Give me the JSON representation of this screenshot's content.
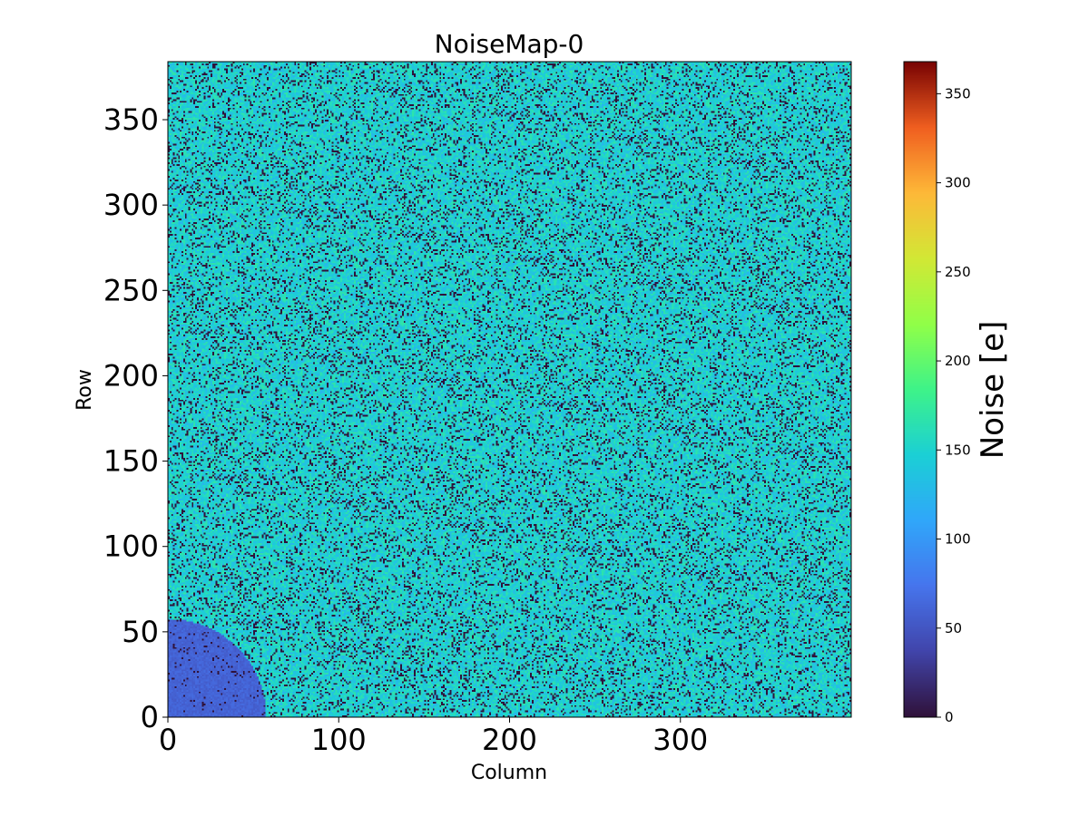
{
  "chart_data": {
    "type": "heatmap",
    "title": "NoiseMap-0",
    "xlabel": "Column",
    "ylabel": "Row",
    "xlim": [
      0,
      400
    ],
    "ylim": [
      0,
      384
    ],
    "xticks": [
      0,
      100,
      200,
      300
    ],
    "yticks": [
      0,
      50,
      100,
      150,
      200,
      250,
      300,
      350
    ],
    "colormap": "turbo",
    "colorbar": {
      "label": "Noise [e]",
      "range": [
        0,
        368
      ],
      "ticks": [
        0,
        50,
        100,
        150,
        200,
        250,
        300,
        350
      ]
    },
    "regions": [
      {
        "description": "bulk",
        "typical_value": 150,
        "dead_pixel_value": 0
      },
      {
        "description": "lower-left quarter disk",
        "center": [
          0,
          0
        ],
        "radius": 57,
        "typical_value": 60
      }
    ]
  },
  "colors": {
    "bulk": "#38e38c",
    "low_region": "#3f6ff0",
    "dead": "#30123b"
  }
}
